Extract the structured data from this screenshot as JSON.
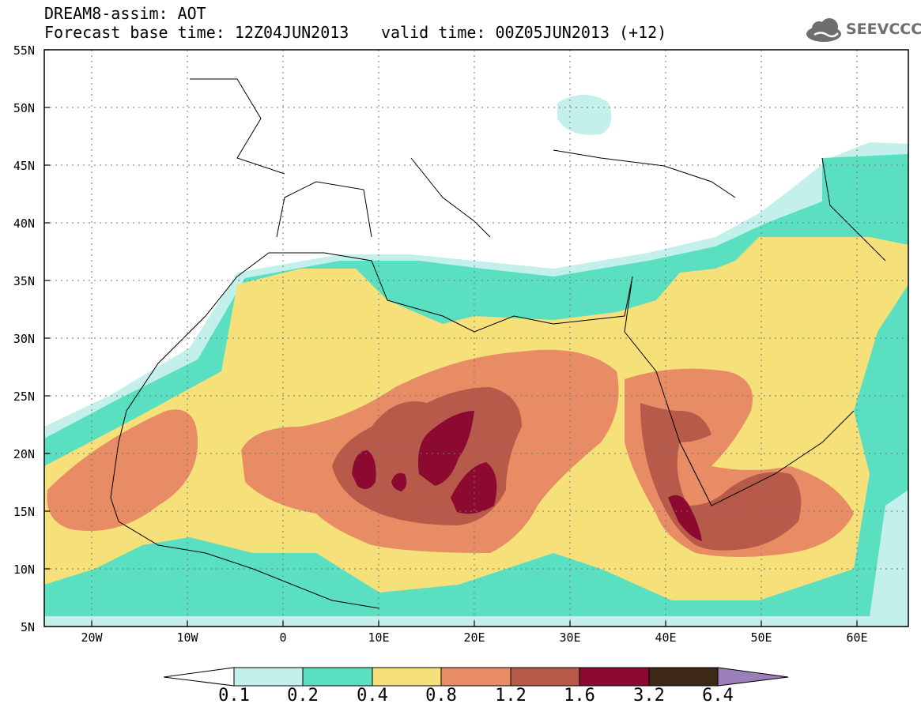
{
  "header": {
    "title": "DREAM8-assim: AOT",
    "base_time": "Forecast base time: 12Z04JUN2013",
    "valid_time": "valid time: 00Z05JUN2013 (+12)",
    "logo_text": "SEEVCCC"
  },
  "map": {
    "lat_ticks": [
      "55N",
      "50N",
      "45N",
      "40N",
      "35N",
      "30N",
      "25N",
      "20N",
      "15N",
      "10N",
      "5N"
    ],
    "lon_ticks": [
      "20W",
      "10W",
      "0",
      "10E",
      "20E",
      "30E",
      "40E",
      "50E",
      "60E"
    ],
    "extent": {
      "lon_min": -25,
      "lon_max": 65,
      "lat_min": 5,
      "lat_max": 55
    }
  },
  "colorbar": {
    "levels": [
      "0.1",
      "0.2",
      "0.4",
      "0.8",
      "1.2",
      "1.6",
      "3.2",
      "6.4"
    ],
    "colors": [
      "#c3f0ea",
      "#5ae0c0",
      "#f5e07a",
      "#e88c66",
      "#b85a4a",
      "#8c0a30",
      "#3d2817",
      "#9a7fb8"
    ]
  },
  "colors": {
    "c01": "#c3f0ea",
    "c02": "#5ae0c0",
    "c04": "#f5e07a",
    "c08": "#e88c66",
    "c12": "#b85a4a",
    "c16": "#8c0a30"
  }
}
